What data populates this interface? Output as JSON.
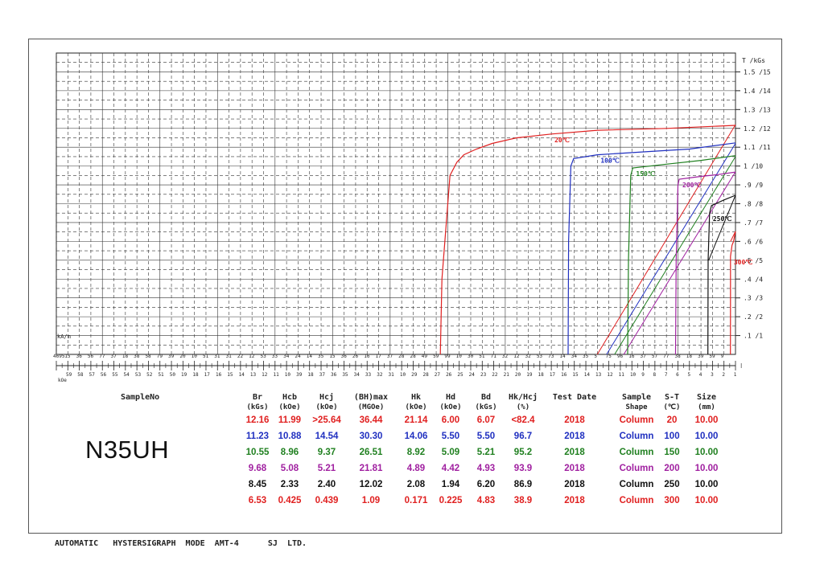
{
  "chart_data": {
    "type": "line",
    "title": "",
    "y_unit_label": "T /kGs",
    "y_ticks": [
      {
        "value": 0.1,
        "label": ".1 /1"
      },
      {
        "value": 0.2,
        "label": ".2 /2"
      },
      {
        "value": 0.3,
        "label": ".3 /3"
      },
      {
        "value": 0.4,
        "label": ".4 /4"
      },
      {
        "value": 0.5,
        "label": ".5 /5"
      },
      {
        "value": 0.6,
        "label": ".6 /6"
      },
      {
        "value": 0.7,
        "label": ".7 /7"
      },
      {
        "value": 0.8,
        "label": ".8 /8"
      },
      {
        "value": 0.9,
        "label": ".9 /9"
      },
      {
        "value": 1.0,
        "label": "1 /10"
      },
      {
        "value": 1.1,
        "label": "1.1 /11"
      },
      {
        "value": 1.2,
        "label": "1.2 /12"
      },
      {
        "value": 1.3,
        "label": "1.3 /13"
      },
      {
        "value": 1.4,
        "label": "1.4 /14"
      },
      {
        "value": 1.5,
        "label": "1.5 /15"
      }
    ],
    "ylim": [
      0,
      1.6
    ],
    "xlim_koe": [
      -59,
      0
    ],
    "x_unit_label_top": "kA/m",
    "x_unit_label_bottom": "kOe",
    "x_tick_labels_top": [
      "4695",
      "15",
      "36",
      "56",
      "77",
      "37",
      "18",
      "38",
      "58",
      "79",
      "39",
      "20",
      "10",
      "51",
      "31",
      "31",
      "22",
      "12",
      "53",
      "33",
      "34",
      "24",
      "14",
      "35",
      "15",
      "36",
      "26",
      "16",
      "17",
      "37",
      "28",
      "28",
      "49",
      "59",
      "99",
      "10",
      "30",
      "51",
      "71",
      "32",
      "12",
      "32",
      "53",
      "73",
      "14",
      "34",
      "35",
      "5",
      "75",
      "96",
      "16",
      "37",
      "57",
      "77",
      "38",
      "18",
      "39",
      "59",
      "9"
    ],
    "x_tick_labels_bottom": [
      "59",
      "58",
      "57",
      "56",
      "55",
      "54",
      "53",
      "52",
      "51",
      "50",
      "19",
      "18",
      "17",
      "16",
      "15",
      "14",
      "13",
      "12",
      "11",
      "10",
      "39",
      "18",
      "37",
      "36",
      "35",
      "34",
      "33",
      "32",
      "31",
      "10",
      "29",
      "28",
      "27",
      "26",
      "25",
      "24",
      "23",
      "22",
      "21",
      "20",
      "19",
      "18",
      "17",
      "16",
      "15",
      "14",
      "13",
      "12",
      "11",
      "10",
      "9",
      "8",
      "7",
      "6",
      "5",
      "4",
      "3",
      "2",
      "1"
    ],
    "series": [
      {
        "name": "20℃",
        "color": "#e02020",
        "x": [
          -25.64,
          -25.5,
          -24.8,
          -24.2,
          -23.6,
          -22.5,
          -21.14,
          -19.0,
          -16.0,
          -12.0,
          -6.0,
          0.0
        ],
        "y": [
          0.0,
          0.4,
          0.95,
          1.02,
          1.06,
          1.09,
          1.12,
          1.15,
          1.17,
          1.19,
          1.2,
          1.216
        ]
      },
      {
        "name": "100℃",
        "color": "#2030c0",
        "x": [
          -14.54,
          -14.5,
          -14.3,
          -14.06,
          -12.0,
          -8.0,
          -4.0,
          0.0
        ],
        "y": [
          0.0,
          0.6,
          1.0,
          1.04,
          1.06,
          1.075,
          1.09,
          1.123
        ]
      },
      {
        "name": "150℃",
        "color": "#208020",
        "x": [
          -9.37,
          -9.3,
          -9.1,
          -8.92,
          -6.0,
          -3.0,
          0.0
        ],
        "y": [
          0.0,
          0.5,
          0.95,
          0.99,
          1.01,
          1.03,
          1.055
        ]
      },
      {
        "name": "200℃",
        "color": "#a020a0",
        "x": [
          -5.21,
          -5.15,
          -5.0,
          -4.89,
          -3.0,
          -1.5,
          0.0
        ],
        "y": [
          0.0,
          0.5,
          0.9,
          0.93,
          0.945,
          0.955,
          0.968
        ]
      },
      {
        "name": "250℃",
        "color": "#111111",
        "x": [
          -2.4,
          -2.38,
          -2.25,
          -2.08,
          -1.0,
          0.0
        ],
        "y": [
          0.0,
          0.5,
          0.75,
          0.79,
          0.82,
          0.845
        ]
      },
      {
        "name": "300℃",
        "color": "#e02020",
        "x": [
          -0.439,
          -0.435,
          -0.43,
          -0.3,
          -0.171,
          0.0
        ],
        "y": [
          0.0,
          0.3,
          0.52,
          0.58,
          0.6,
          0.653
        ]
      }
    ],
    "b_lines": [
      {
        "color": "#e02020",
        "x": [
          -12.0,
          0.0
        ],
        "y": [
          0.0,
          1.22
        ]
      },
      {
        "color": "#2030c0",
        "x": [
          -11.2,
          0.0
        ],
        "y": [
          0.0,
          1.12
        ]
      },
      {
        "color": "#208020",
        "x": [
          -10.5,
          0.0
        ],
        "y": [
          0.0,
          1.05
        ]
      },
      {
        "color": "#a020a0",
        "x": [
          -9.7,
          0.0
        ],
        "y": [
          0.0,
          0.97
        ]
      },
      {
        "color": "#111111",
        "x": [
          -2.33,
          0.0
        ],
        "y": [
          0.5,
          0.845
        ]
      },
      {
        "color": "#e02020",
        "x": [
          -0.425,
          0.0
        ],
        "y": [
          0.6,
          0.653
        ]
      }
    ]
  },
  "table": {
    "sample_label": "SampleNo",
    "sample_name": "N35UH",
    "headers": [
      {
        "key": "br",
        "line1": "Br",
        "line2": "(kGs)"
      },
      {
        "key": "hcb",
        "line1": "Hcb",
        "line2": "(kOe)"
      },
      {
        "key": "hcj",
        "line1": "Hcj",
        "line2": "(kOe)"
      },
      {
        "key": "bhmax",
        "line1": "(BH)max",
        "line2": "(MGOe)"
      },
      {
        "key": "hk",
        "line1": "Hk",
        "line2": "(kOe)"
      },
      {
        "key": "hd",
        "line1": "Hd",
        "line2": "(kOe)"
      },
      {
        "key": "bd",
        "line1": "Bd",
        "line2": "(kGs)"
      },
      {
        "key": "hkhcj",
        "line1": "Hk/Hcj",
        "line2": "(%)"
      },
      {
        "key": "date",
        "line1": "Test Date",
        "line2": ""
      },
      {
        "key": "shape",
        "line1": "Sample",
        "line2": "Shape"
      },
      {
        "key": "st",
        "line1": "S-T",
        "line2": "(℃)"
      },
      {
        "key": "size",
        "line1": "Size",
        "line2": "(mm)"
      }
    ],
    "rows": [
      {
        "color": "#e02020",
        "br": "12.16",
        "hcb": "11.99",
        "hcj": ">25.64",
        "bhmax": "36.44",
        "hk": "21.14",
        "hd": "6.00",
        "bd": "6.07",
        "hkhcj": "<82.4",
        "date": "2018",
        "shape": "Column",
        "st": "20",
        "size": "10.00"
      },
      {
        "color": "#2030c0",
        "br": "11.23",
        "hcb": "10.88",
        "hcj": "14.54",
        "bhmax": "30.30",
        "hk": "14.06",
        "hd": "5.50",
        "bd": "5.50",
        "hkhcj": "96.7",
        "date": "2018",
        "shape": "Column",
        "st": "100",
        "size": "10.00"
      },
      {
        "color": "#208020",
        "br": "10.55",
        "hcb": "8.96",
        "hcj": "9.37",
        "bhmax": "26.51",
        "hk": "8.92",
        "hd": "5.09",
        "bd": "5.21",
        "hkhcj": "95.2",
        "date": "2018",
        "shape": "Column",
        "st": "150",
        "size": "10.00"
      },
      {
        "color": "#a020a0",
        "br": "9.68",
        "hcb": "5.08",
        "hcj": "5.21",
        "bhmax": "21.81",
        "hk": "4.89",
        "hd": "4.42",
        "bd": "4.93",
        "hkhcj": "93.9",
        "date": "2018",
        "shape": "Column",
        "st": "200",
        "size": "10.00"
      },
      {
        "color": "#111111",
        "br": "8.45",
        "hcb": "2.33",
        "hcj": "2.40",
        "bhmax": "12.02",
        "hk": "2.08",
        "hd": "1.94",
        "bd": "6.20",
        "hkhcj": "86.9",
        "date": "2018",
        "shape": "Column",
        "st": "250",
        "size": "10.00"
      },
      {
        "color": "#e02020",
        "br": "6.53",
        "hcb": "0.425",
        "hcj": "0.439",
        "bhmax": "1.09",
        "hk": "0.171",
        "hd": "0.225",
        "bd": "4.83",
        "hkhcj": "38.9",
        "date": "2018",
        "shape": "Column",
        "st": "300",
        "size": "10.00"
      }
    ]
  },
  "footer": "AUTOMATIC   HYSTERSIGRAPH  MODE  AMT-4      SJ  LTD."
}
